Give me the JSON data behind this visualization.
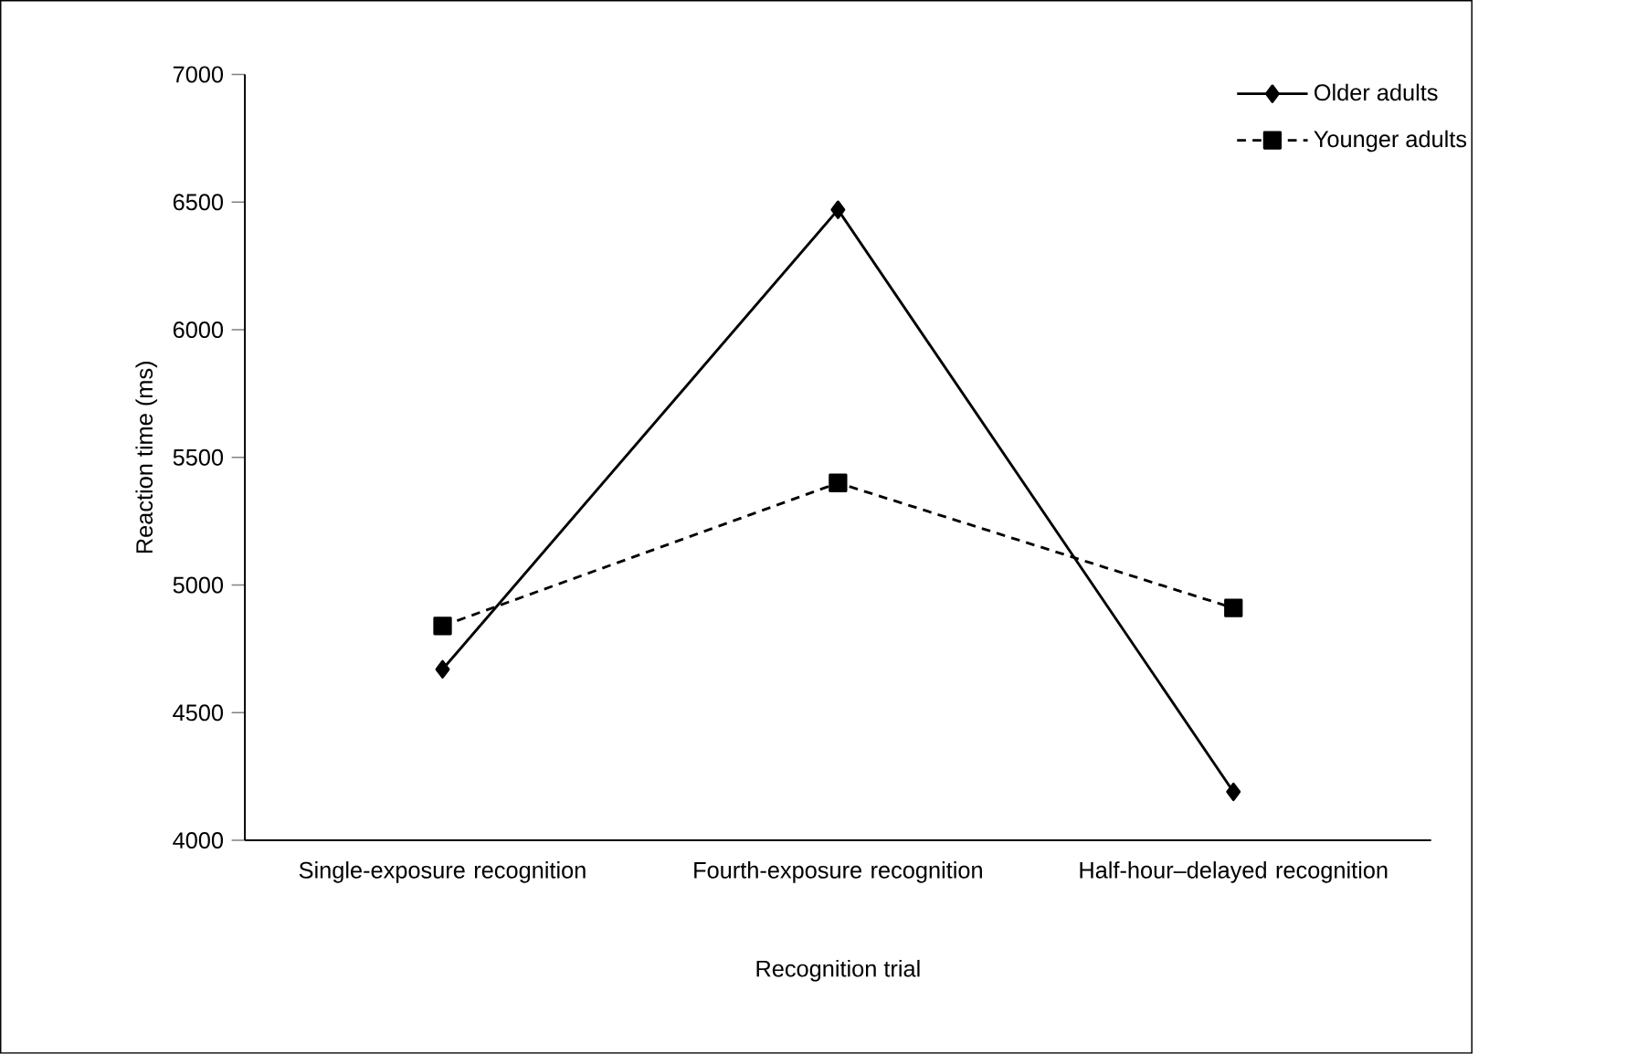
{
  "chart_data": {
    "type": "line",
    "xlabel": "Recognition trial",
    "ylabel": "Reaction time (ms)",
    "categories": [
      "Single-exposure recognition",
      "Fourth-exposure recognition",
      "Half-hour–delayed recognition"
    ],
    "series": [
      {
        "name": "Older adults",
        "color": "#000000",
        "values": [
          4670,
          6470,
          4190
        ],
        "marker": "diamond",
        "line_style": "solid"
      },
      {
        "name": "Younger adults",
        "color": "#000000",
        "values": [
          4840,
          5400,
          4910
        ],
        "marker": "square",
        "line_style": "dashed"
      }
    ],
    "ylim": [
      4000,
      7000
    ],
    "yticks": [
      4000,
      4500,
      5000,
      5500,
      6000,
      6500,
      7000
    ],
    "legend": "top right",
    "grid": false
  }
}
